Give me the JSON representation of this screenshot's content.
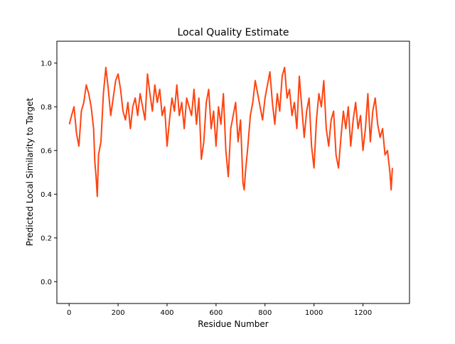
{
  "chart_data": {
    "type": "line",
    "title": "Local Quality Estimate",
    "xlabel": "Residue Number",
    "ylabel": "Predicted Local Similarity to Target",
    "xlim": [
      -50,
      1390
    ],
    "ylim": [
      -0.1,
      1.1
    ],
    "x_ticks": [
      0,
      200,
      400,
      600,
      800,
      1000,
      1200
    ],
    "x_tick_labels": [
      "0",
      "200",
      "400",
      "600",
      "800",
      "1000",
      "1200"
    ],
    "y_ticks": [
      0.0,
      0.2,
      0.4,
      0.6,
      0.8,
      1.0
    ],
    "y_tick_labels": [
      "0.0",
      "0.2",
      "0.4",
      "0.6",
      "0.8",
      "1.0"
    ],
    "grid": false,
    "legend": false,
    "series": [
      {
        "color": "#ff4411",
        "x": [
          1,
          10,
          20,
          30,
          40,
          50,
          60,
          70,
          80,
          90,
          100,
          105,
          110,
          115,
          120,
          130,
          140,
          150,
          160,
          170,
          180,
          190,
          200,
          210,
          220,
          230,
          240,
          250,
          260,
          270,
          280,
          290,
          300,
          310,
          320,
          330,
          340,
          350,
          360,
          370,
          380,
          390,
          400,
          410,
          420,
          430,
          440,
          450,
          460,
          470,
          480,
          490,
          500,
          510,
          520,
          530,
          540,
          550,
          560,
          570,
          580,
          590,
          600,
          610,
          620,
          630,
          640,
          650,
          660,
          670,
          680,
          690,
          700,
          710,
          715,
          720,
          730,
          740,
          750,
          760,
          770,
          780,
          790,
          800,
          810,
          820,
          830,
          840,
          850,
          860,
          870,
          880,
          890,
          900,
          910,
          920,
          930,
          940,
          950,
          960,
          970,
          980,
          990,
          1000,
          1010,
          1020,
          1030,
          1040,
          1050,
          1060,
          1070,
          1080,
          1090,
          1100,
          1110,
          1120,
          1130,
          1140,
          1150,
          1160,
          1170,
          1180,
          1190,
          1200,
          1210,
          1220,
          1230,
          1240,
          1250,
          1260,
          1270,
          1280,
          1290,
          1300,
          1310,
          1315,
          1320
        ],
        "y": [
          0.72,
          0.76,
          0.8,
          0.68,
          0.62,
          0.78,
          0.82,
          0.9,
          0.86,
          0.8,
          0.7,
          0.55,
          0.48,
          0.39,
          0.58,
          0.64,
          0.86,
          0.98,
          0.88,
          0.76,
          0.84,
          0.92,
          0.95,
          0.88,
          0.78,
          0.74,
          0.82,
          0.7,
          0.8,
          0.84,
          0.76,
          0.86,
          0.8,
          0.74,
          0.95,
          0.86,
          0.78,
          0.9,
          0.82,
          0.88,
          0.76,
          0.8,
          0.62,
          0.74,
          0.84,
          0.78,
          0.9,
          0.76,
          0.82,
          0.7,
          0.84,
          0.8,
          0.76,
          0.88,
          0.72,
          0.84,
          0.56,
          0.64,
          0.82,
          0.88,
          0.7,
          0.78,
          0.62,
          0.8,
          0.72,
          0.86,
          0.6,
          0.48,
          0.7,
          0.76,
          0.82,
          0.64,
          0.74,
          0.45,
          0.42,
          0.5,
          0.62,
          0.76,
          0.82,
          0.92,
          0.86,
          0.8,
          0.74,
          0.84,
          0.9,
          0.96,
          0.82,
          0.72,
          0.86,
          0.78,
          0.94,
          0.98,
          0.84,
          0.88,
          0.76,
          0.82,
          0.7,
          0.94,
          0.8,
          0.66,
          0.78,
          0.84,
          0.62,
          0.52,
          0.74,
          0.86,
          0.8,
          0.92,
          0.7,
          0.62,
          0.74,
          0.78,
          0.58,
          0.52,
          0.66,
          0.78,
          0.7,
          0.8,
          0.62,
          0.74,
          0.82,
          0.7,
          0.76,
          0.6,
          0.7,
          0.86,
          0.64,
          0.78,
          0.84,
          0.72,
          0.66,
          0.7,
          0.58,
          0.6,
          0.5,
          0.42,
          0.52
        ]
      }
    ]
  }
}
